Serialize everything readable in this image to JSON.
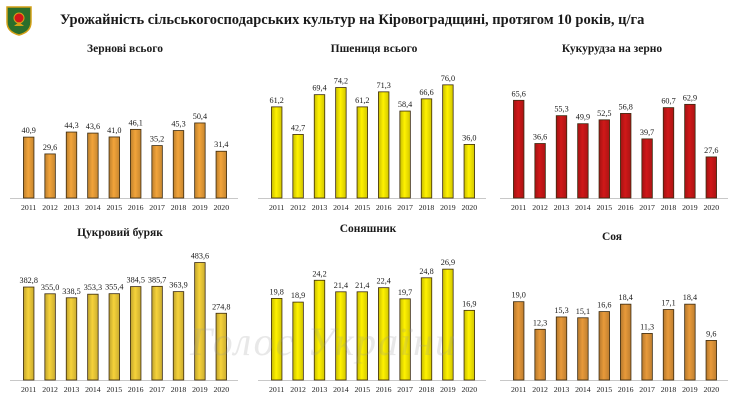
{
  "title": "Урожайність сільськогосподарських культур на Кіровоградщині, протягом 10 років, ц/га",
  "watermark": "Голос України",
  "emblem_icon": "kirovohrad-oblast-coat-of-arms-icon",
  "chart_data": [
    {
      "type": "bar",
      "title": "Зернові всього",
      "categories": [
        "2011",
        "2012",
        "2013",
        "2014",
        "2015",
        "2016",
        "2017",
        "2018",
        "2019",
        "2020"
      ],
      "values": [
        40.9,
        29.6,
        44.3,
        43.6,
        41.0,
        46.1,
        35.2,
        45.3,
        50.4,
        31.4
      ],
      "value_labels": [
        "40,9",
        "29,6",
        "44,3",
        "43,6",
        "41,0",
        "46,1",
        "35,2",
        "45,3",
        "50,4",
        "31,4"
      ],
      "color": "#f2a43a",
      "ylim": [
        0,
        90
      ],
      "grid": false
    },
    {
      "type": "bar",
      "title": "Пшениця всього",
      "categories": [
        "2011",
        "2012",
        "2013",
        "2014",
        "2015",
        "2016",
        "2017",
        "2018",
        "2019",
        "2020"
      ],
      "values": [
        61.2,
        42.7,
        69.4,
        74.2,
        61.2,
        71.3,
        58.4,
        66.6,
        76.0,
        36.0
      ],
      "value_labels": [
        "61,2",
        "42,7",
        "69,4",
        "74,2",
        "61,2",
        "71,3",
        "58,4",
        "66,6",
        "76,0",
        "36,0"
      ],
      "color": "#fff200",
      "ylim": [
        0,
        90
      ],
      "grid": false
    },
    {
      "type": "bar",
      "title": "Кукурудза на зерно",
      "categories": [
        "2011",
        "2012",
        "2013",
        "2014",
        "2015",
        "2016",
        "2017",
        "2018",
        "2019",
        "2020"
      ],
      "values": [
        65.6,
        36.6,
        55.3,
        49.9,
        52.5,
        56.8,
        39.7,
        60.7,
        62.9,
        27.6
      ],
      "value_labels": [
        "65,6",
        "36,6",
        "55,3",
        "49,9",
        "52,5",
        "56,8",
        "39,7",
        "60,7",
        "62,9",
        "27,6"
      ],
      "color": "#d01818",
      "ylim": [
        0,
        90
      ],
      "grid": false
    },
    {
      "type": "bar",
      "title": "Цукровий буряк",
      "categories": [
        "2011",
        "2012",
        "2013",
        "2014",
        "2015",
        "2016",
        "2017",
        "2018",
        "2019",
        "2020"
      ],
      "values": [
        382.8,
        355.0,
        338.5,
        353.3,
        355.4,
        384.5,
        385.7,
        363.9,
        483.6,
        274.8
      ],
      "value_labels": [
        "382,8",
        "355,0",
        "338,5",
        "353,3",
        "355,4",
        "384,5",
        "385,7",
        "363,9",
        "483,6",
        "274,8"
      ],
      "color": "#f6d23a",
      "ylim": [
        0,
        560
      ],
      "grid": false
    },
    {
      "type": "bar",
      "title": "Соняшник",
      "categories": [
        "2011",
        "2012",
        "2013",
        "2014",
        "2015",
        "2016",
        "2017",
        "2018",
        "2019",
        "2020"
      ],
      "values": [
        19.8,
        18.9,
        24.2,
        21.4,
        21.4,
        22.4,
        19.7,
        24.8,
        26.9,
        16.9
      ],
      "value_labels": [
        "19,8",
        "18,9",
        "24,2",
        "21,4",
        "21,4",
        "22,4",
        "19,7",
        "24,8",
        "26,9",
        "16,9"
      ],
      "color": "#fff200",
      "ylim": [
        0,
        33
      ],
      "grid": false
    },
    {
      "type": "bar",
      "title": "Соя",
      "categories": [
        "2011",
        "2012",
        "2013",
        "2014",
        "2015",
        "2016",
        "2017",
        "2018",
        "2019",
        "2020"
      ],
      "values": [
        19.0,
        12.3,
        15.3,
        15.1,
        16.6,
        18.4,
        11.3,
        17.1,
        18.4,
        9.6
      ],
      "value_labels": [
        "19,0",
        "12,3",
        "15,3",
        "15,1",
        "16,6",
        "18,4",
        "11,3",
        "17,1",
        "18,4",
        "9,6"
      ],
      "color": "#e89a3a",
      "ylim": [
        0,
        33
      ],
      "grid": false
    }
  ]
}
